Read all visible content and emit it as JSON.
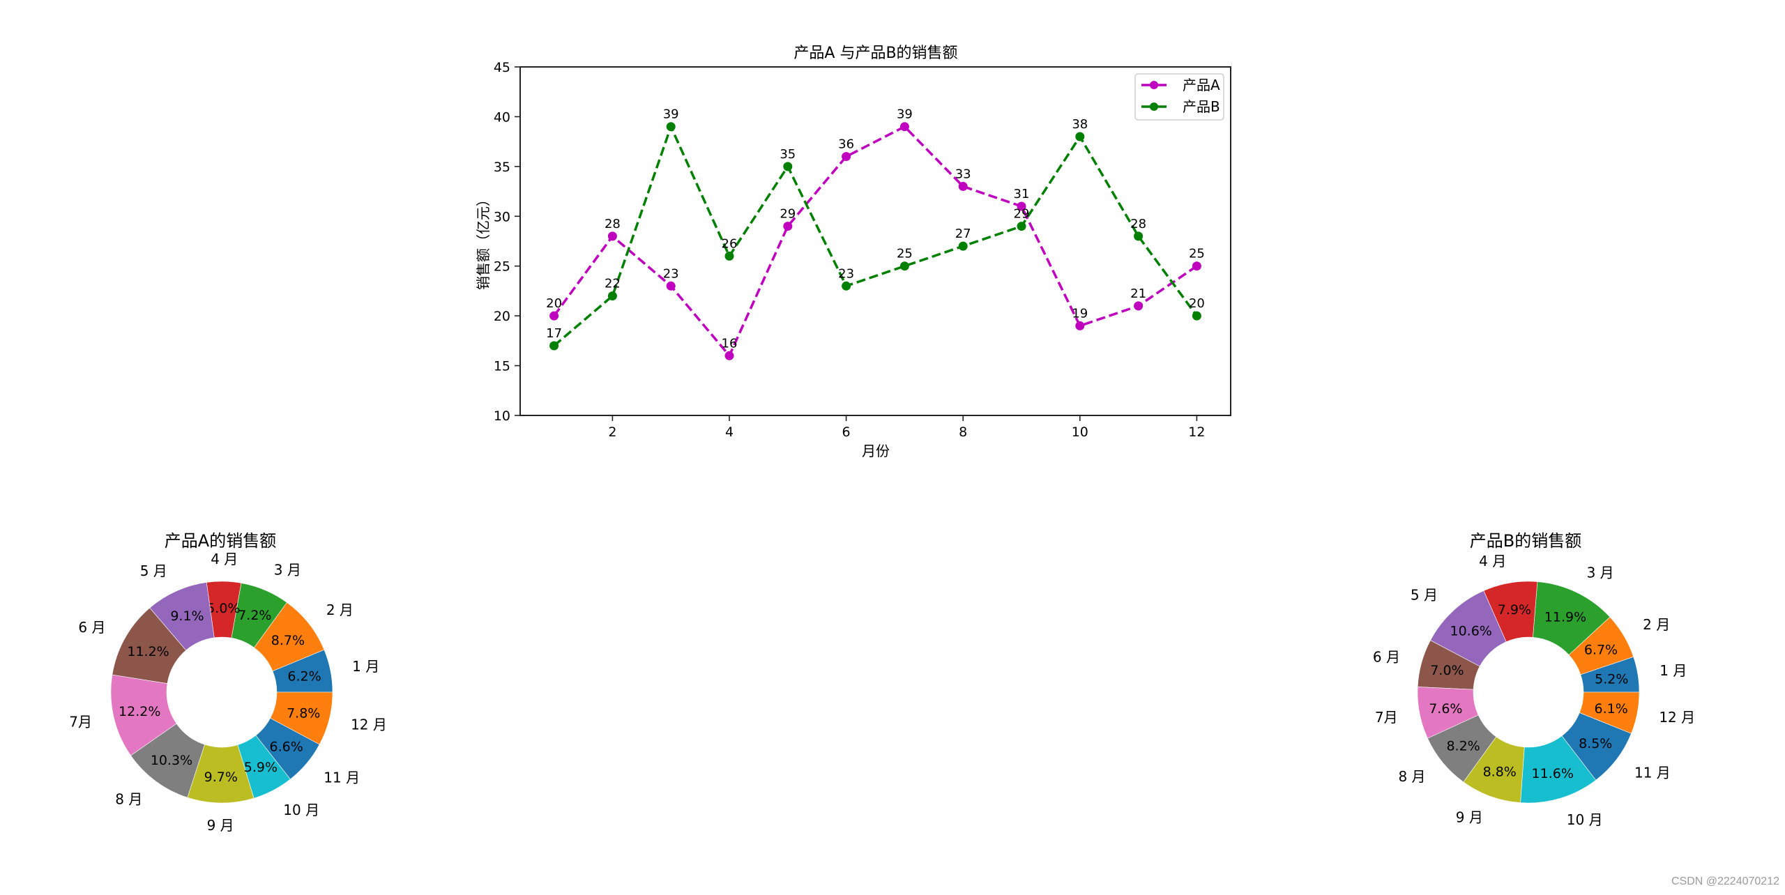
{
  "figure": {
    "background": "#ffffff",
    "watermark": "CSDN @2224070212"
  },
  "chart_data": [
    {
      "type": "line",
      "title": "产品A 与产品B的销售额",
      "xlabel": "月份",
      "ylabel": "销售额（亿元）",
      "x": [
        1,
        2,
        3,
        4,
        5,
        6,
        7,
        8,
        9,
        10,
        11,
        12
      ],
      "xticks": [
        2,
        4,
        6,
        8,
        10,
        12
      ],
      "yticks": [
        10,
        15,
        20,
        25,
        30,
        35,
        40,
        45
      ],
      "xlim": [
        0.42,
        12.58
      ],
      "ylim": [
        10,
        45
      ],
      "grid": false,
      "legend_position": "upper right",
      "series": [
        {
          "name": "产品A",
          "color": "#bf00bf",
          "linestyle": "dashed",
          "marker": "o",
          "values": [
            20,
            28,
            23,
            16,
            29,
            36,
            39,
            33,
            31,
            19,
            21,
            25
          ]
        },
        {
          "name": "产品B",
          "color": "#008000",
          "linestyle": "dashed",
          "marker": "o",
          "values": [
            17,
            22,
            39,
            26,
            35,
            23,
            25,
            27,
            29,
            38,
            28,
            20
          ]
        }
      ],
      "data_labels": true
    },
    {
      "type": "pie",
      "variant": "donut",
      "title": "产品A的销售额",
      "labels": [
        "1 月",
        "2 月",
        "3 月",
        "4 月",
        "5 月",
        "6 月",
        "7月",
        "8 月",
        "9 月",
        "10 月",
        "11 月",
        "12 月"
      ],
      "values": [
        20,
        28,
        23,
        16,
        29,
        36,
        39,
        33,
        31,
        19,
        21,
        25
      ],
      "percent_labels": [
        "6.2%",
        "8.7%",
        "7.2%",
        "5.0%",
        "9.1%",
        "11.2%",
        "12.2%",
        "10.3%",
        "9.7%",
        "5.9%",
        "6.6%",
        "7.8%"
      ],
      "colors": [
        "#1f77b4",
        "#ff7f0e",
        "#2ca02c",
        "#d62728",
        "#9467bd",
        "#8c564b",
        "#e377c2",
        "#7f7f7f",
        "#bcbd22",
        "#17becf",
        "#1f77b4",
        "#ff7f0e"
      ],
      "start_angle": 0,
      "direction": "counterclockwise"
    },
    {
      "type": "pie",
      "variant": "donut",
      "title": "产品B的销售额",
      "labels": [
        "1 月",
        "2 月",
        "3 月",
        "4 月",
        "5 月",
        "6 月",
        "7月",
        "8 月",
        "9 月",
        "10 月",
        "11 月",
        "12 月"
      ],
      "values": [
        17,
        22,
        39,
        26,
        35,
        23,
        25,
        27,
        29,
        38,
        28,
        20
      ],
      "percent_labels": [
        "5.2%",
        "6.7%",
        "11.9%",
        "7.9%",
        "10.6%",
        "7.0%",
        "7.6%",
        "8.2%",
        "8.8%",
        "11.6%",
        "8.5%",
        "6.1%"
      ],
      "colors": [
        "#1f77b4",
        "#ff7f0e",
        "#2ca02c",
        "#d62728",
        "#9467bd",
        "#8c564b",
        "#e377c2",
        "#7f7f7f",
        "#bcbd22",
        "#17becf",
        "#1f77b4",
        "#ff7f0e"
      ],
      "start_angle": 0,
      "direction": "counterclockwise"
    }
  ]
}
